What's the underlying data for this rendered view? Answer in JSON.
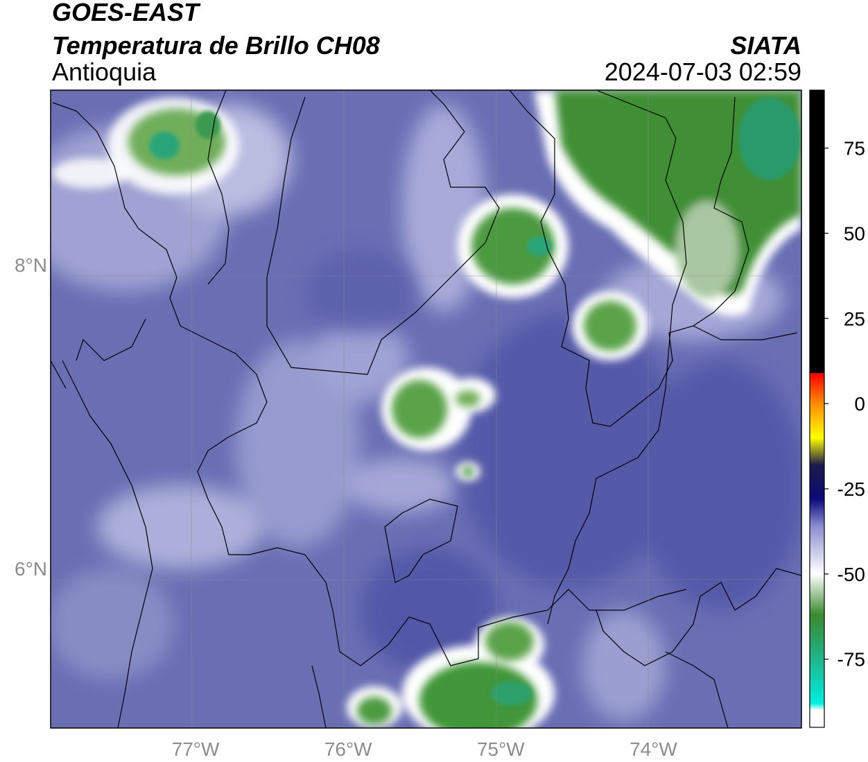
{
  "header": {
    "satellite": "GOES-EAST",
    "product": "Temperatura de Brillo CH08",
    "region": "Antioquia",
    "org": "SIATA",
    "datetime": "2024-07-03 02:59"
  },
  "map": {
    "lat_ticks": [
      {
        "value": 8,
        "label": "8°N"
      },
      {
        "value": 6,
        "label": "6°N"
      }
    ],
    "lon_ticks": [
      {
        "value": -77,
        "label": "77°W"
      },
      {
        "value": -76,
        "label": "76°W"
      },
      {
        "value": -75,
        "label": "75°W"
      },
      {
        "value": -74,
        "label": "74°W"
      }
    ],
    "extent": {
      "lon_min": -77.95,
      "lon_max": -73.03,
      "lat_min": 4.95,
      "lat_max": 9.15
    },
    "features": {
      "background": "#6a6fb4",
      "warm_band": "#8c8fc8",
      "cold_cloud": "#3f8f3c",
      "cloud_edge": "#ffffff",
      "cloud_core": "#2aa57a"
    }
  },
  "colorbar": {
    "ticks": [
      {
        "value": 75,
        "label": "75"
      },
      {
        "value": 50,
        "label": "50"
      },
      {
        "value": 25,
        "label": "25"
      },
      {
        "value": 0,
        "label": "0"
      },
      {
        "value": -25,
        "label": "-25"
      },
      {
        "value": -50,
        "label": "-50"
      },
      {
        "value": -75,
        "label": "-75"
      }
    ],
    "range": [
      -95,
      92
    ],
    "stops": [
      {
        "value": 92,
        "color": "#000000"
      },
      {
        "value": 9,
        "color": "#000000"
      },
      {
        "value": 8.9,
        "color": "#ff0000"
      },
      {
        "value": 0,
        "color": "#ff8c00"
      },
      {
        "value": -10,
        "color": "#ffff00"
      },
      {
        "value": -18,
        "color": "#1b1b4a"
      },
      {
        "value": -28,
        "color": "#0b0b7a"
      },
      {
        "value": -36,
        "color": "#8a8ed0"
      },
      {
        "value": -50,
        "color": "#ffffff"
      },
      {
        "value": -62,
        "color": "#3a8a2e"
      },
      {
        "value": -75,
        "color": "#1fb58a"
      },
      {
        "value": -88,
        "color": "#00f0e0"
      },
      {
        "value": -90,
        "color": "#ffffff"
      },
      {
        "value": -95,
        "color": "#ffffff"
      }
    ]
  }
}
